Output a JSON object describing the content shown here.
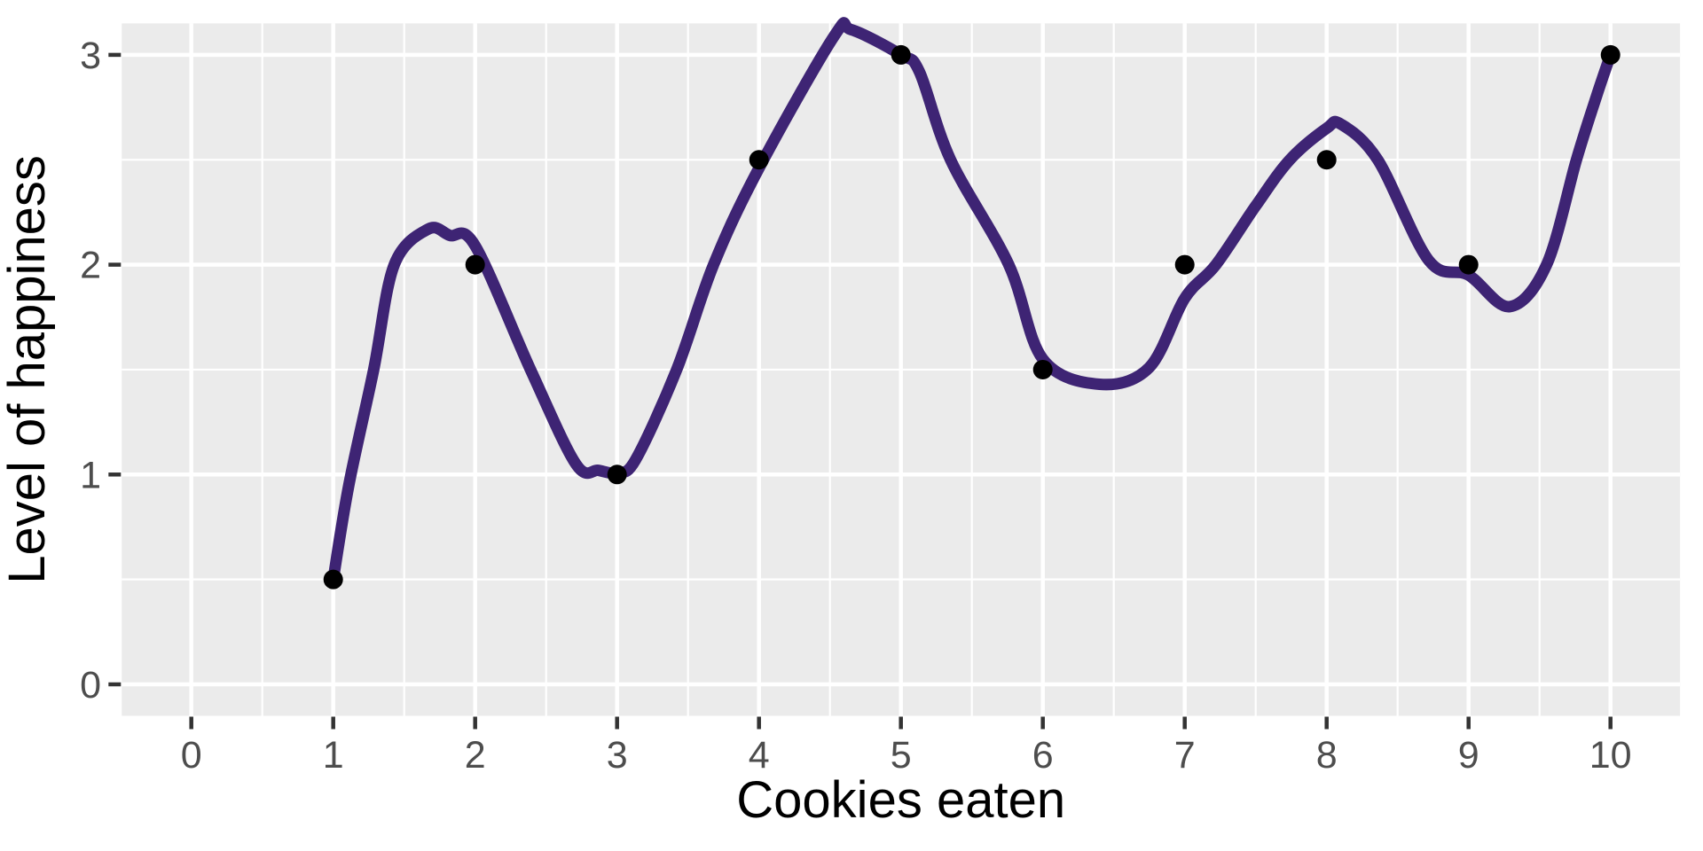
{
  "chart_data": {
    "type": "scatter",
    "title": "",
    "xlabel": "Cookies eaten",
    "ylabel": "Level of happiness",
    "x_ticks": [
      0,
      1,
      2,
      3,
      4,
      5,
      6,
      7,
      8,
      9,
      10
    ],
    "y_ticks": [
      0,
      1,
      2,
      3
    ],
    "x_minor_ticks": [
      0.5,
      1.5,
      2.5,
      3.5,
      4.5,
      5.5,
      6.5,
      7.5,
      8.5,
      9.5
    ],
    "y_minor_ticks": [
      0.5,
      1.5,
      2.5
    ],
    "xlim": [
      -0.49,
      10.49
    ],
    "ylim": [
      -0.15,
      3.15
    ],
    "grid": "major and minor white gridlines on gray panel",
    "legend": "none",
    "points": {
      "x": [
        1,
        2,
        3,
        4,
        5,
        6,
        7,
        8,
        9,
        10
      ],
      "y": [
        0.5,
        2,
        1,
        2.5,
        3,
        1.5,
        2,
        2.5,
        2,
        3
      ]
    },
    "smooth_line": {
      "description": "smooth fitted curve through the points",
      "samples": [
        [
          1.0,
          0.5
        ],
        [
          1.11,
          0.95
        ],
        [
          1.285,
          1.5
        ],
        [
          1.43,
          2.0
        ],
        [
          1.67,
          2.17
        ],
        [
          1.82,
          2.14
        ],
        [
          2.0,
          2.09
        ],
        [
          2.39,
          1.5
        ],
        [
          2.71,
          1.05
        ],
        [
          2.87,
          1.02
        ],
        [
          3.0,
          1.01
        ],
        [
          3.13,
          1.07
        ],
        [
          3.42,
          1.5
        ],
        [
          3.68,
          2.0
        ],
        [
          4.0,
          2.46
        ],
        [
          4.53,
          3.09
        ],
        [
          4.65,
          3.12
        ],
        [
          5.0,
          3.0
        ],
        [
          5.13,
          2.92
        ],
        [
          5.35,
          2.5
        ],
        [
          5.76,
          2.0
        ],
        [
          6.0,
          1.55
        ],
        [
          6.4,
          1.43
        ],
        [
          6.75,
          1.51
        ],
        [
          7.0,
          1.84
        ],
        [
          7.22,
          2.0
        ],
        [
          7.5,
          2.28
        ],
        [
          7.74,
          2.5
        ],
        [
          8.0,
          2.65
        ],
        [
          8.1,
          2.67
        ],
        [
          8.36,
          2.5
        ],
        [
          8.72,
          2.02
        ],
        [
          9.0,
          1.95
        ],
        [
          9.29,
          1.8
        ],
        [
          9.55,
          2.0
        ],
        [
          9.76,
          2.5
        ],
        [
          9.9,
          2.8
        ],
        [
          10.0,
          3.0
        ]
      ]
    },
    "colors": {
      "background": "#FFFFFF",
      "panel": "#EBEBEB",
      "gridline": "#FFFFFF",
      "curve": "#3E2474",
      "point": "#000000",
      "tick_mark": "#333333",
      "tick_label": "#4D4D4D",
      "axis_title": "#000000"
    }
  }
}
